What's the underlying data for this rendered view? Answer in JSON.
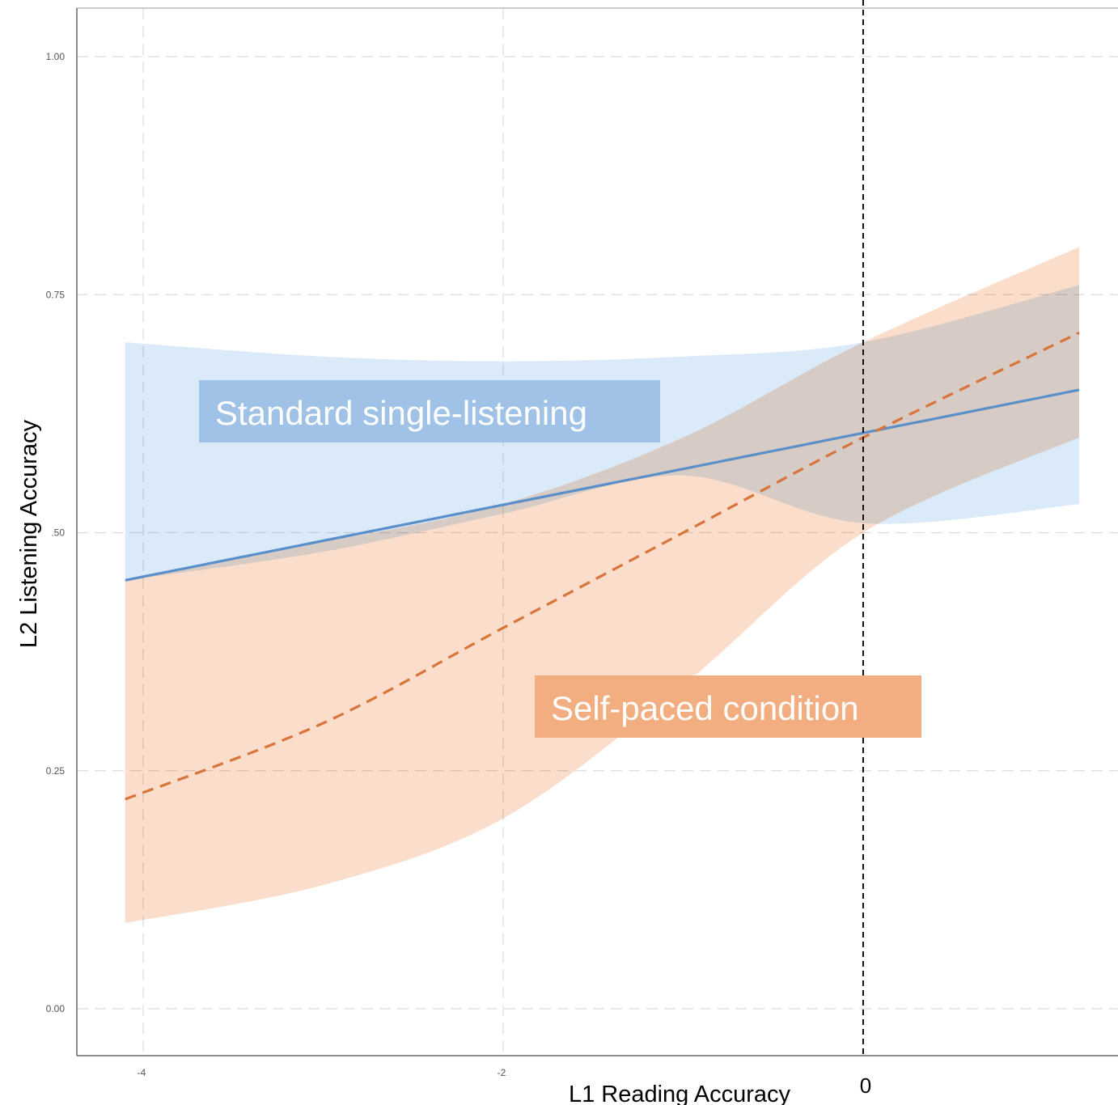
{
  "chart_data": {
    "type": "line",
    "xlabel": "L1 Reading Accuracy",
    "ylabel": "L2 Listening Accuracy",
    "xlim": [
      -4.1,
      1.4
    ],
    "ylim": [
      -0.05,
      1.05
    ],
    "x_ticks": [
      {
        "value": -4,
        "label": "-4"
      },
      {
        "value": -2,
        "label": "-2"
      },
      {
        "value": 0,
        "label": "0"
      }
    ],
    "y_ticks": [
      {
        "value": 0.0,
        "label": "0.00"
      },
      {
        "value": 0.25,
        "label": "0.25"
      },
      {
        "value": 0.5,
        "label": ".50"
      },
      {
        "value": 0.75,
        "label": "0.75"
      },
      {
        "value": 1.0,
        "label": "1.00"
      }
    ],
    "grid": true,
    "reference_line": {
      "x": 0,
      "style": "dashed",
      "color": "#111111"
    },
    "series": [
      {
        "name": "Standard single-listening",
        "line_style": "solid",
        "color": "#5b8fc9",
        "band_color": "#cfe3f7",
        "label_bg": "#9fc2e6",
        "x": [
          -4.1,
          1.2
        ],
        "y": [
          0.45,
          0.65
        ],
        "band_x": [
          -4.1,
          -3,
          -2,
          -1,
          0,
          1.2
        ],
        "band_lower": [
          0.45,
          0.48,
          0.52,
          0.56,
          0.51,
          0.53
        ],
        "band_upper": [
          0.7,
          0.685,
          0.68,
          0.685,
          0.7,
          0.76
        ]
      },
      {
        "name": "Self-paced condition",
        "line_style": "dashed",
        "color": "#d9743a",
        "band_color": "#f8cfb3",
        "label_bg": "#f2ad80",
        "x": [
          -4.1,
          -3,
          -2,
          -1,
          0,
          1.2
        ],
        "y": [
          0.22,
          0.3,
          0.4,
          0.5,
          0.6,
          0.71
        ],
        "band_x": [
          -4.1,
          -3,
          -2,
          -1,
          0,
          1.2
        ],
        "band_lower": [
          0.09,
          0.13,
          0.2,
          0.34,
          0.5,
          0.6
        ],
        "band_upper": [
          0.45,
          0.49,
          0.53,
          0.6,
          0.7,
          0.8
        ]
      }
    ]
  }
}
